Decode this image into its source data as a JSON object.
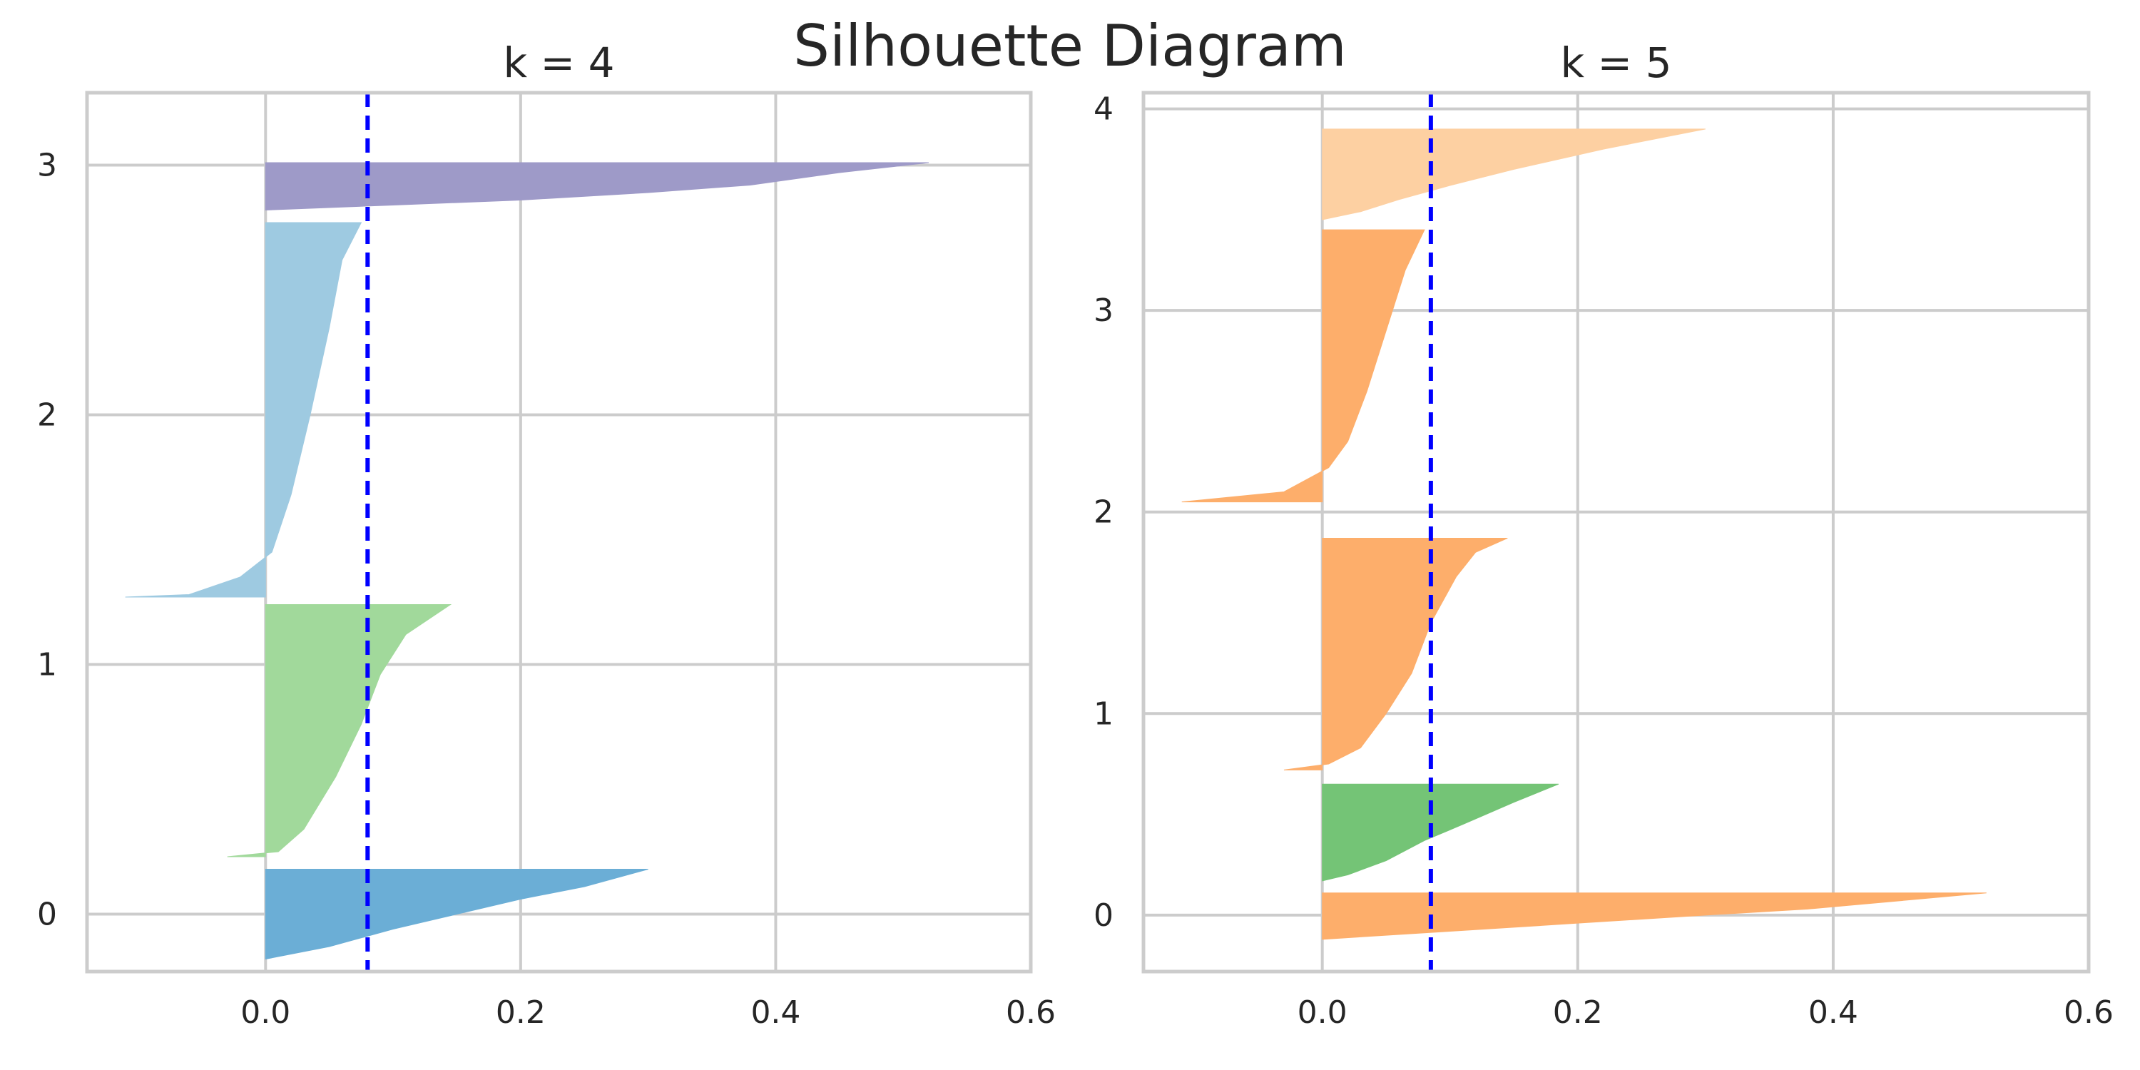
{
  "chart_data": {
    "type": "silhouette",
    "title": "Silhouette Diagram",
    "panels": [
      {
        "title": "k = 4",
        "xlim": [
          -0.14,
          0.6
        ],
        "ylim": [
          -0.23,
          3.29
        ],
        "xticks": [
          0.0,
          0.2,
          0.4,
          0.6
        ],
        "xtick_labels": [
          "0.0",
          "0.2",
          "0.4",
          "0.6"
        ],
        "yticks": [
          0,
          1,
          2,
          3
        ],
        "ytick_labels": [
          "0",
          "1",
          "2",
          "3"
        ],
        "grid": true,
        "mean_silhouette": 0.08,
        "clusters": [
          {
            "label": "0",
            "band": [
              -0.18,
              0.18
            ],
            "color": "#6baed6",
            "profile": [
              [
                0.3,
                0.18
              ],
              [
                0.25,
                0.11
              ],
              [
                0.2,
                0.06
              ],
              [
                0.15,
                0.0
              ],
              [
                0.1,
                -0.06
              ],
              [
                0.05,
                -0.13
              ],
              [
                0.0,
                -0.18
              ]
            ]
          },
          {
            "label": "1",
            "band": [
              0.23,
              1.24
            ],
            "color": "#a1d99b",
            "profile": [
              [
                0.145,
                1.24
              ],
              [
                0.11,
                1.12
              ],
              [
                0.09,
                0.96
              ],
              [
                0.075,
                0.76
              ],
              [
                0.055,
                0.55
              ],
              [
                0.03,
                0.34
              ],
              [
                0.01,
                0.25
              ],
              [
                -0.03,
                0.23
              ]
            ]
          },
          {
            "label": "2",
            "band": [
              1.27,
              2.77
            ],
            "color": "#9ecae1",
            "profile": [
              [
                0.075,
                2.77
              ],
              [
                0.06,
                2.62
              ],
              [
                0.05,
                2.35
              ],
              [
                0.035,
                2.0
              ],
              [
                0.02,
                1.68
              ],
              [
                0.005,
                1.45
              ],
              [
                -0.02,
                1.35
              ],
              [
                -0.06,
                1.28
              ],
              [
                -0.11,
                1.27
              ]
            ]
          },
          {
            "label": "3",
            "band": [
              2.82,
              3.01
            ],
            "color": "#9e9ac8",
            "profile": [
              [
                0.52,
                3.01
              ],
              [
                0.45,
                2.97
              ],
              [
                0.38,
                2.92
              ],
              [
                0.3,
                2.89
              ],
              [
                0.2,
                2.86
              ],
              [
                0.1,
                2.84
              ],
              [
                0.0,
                2.82
              ]
            ]
          }
        ]
      },
      {
        "title": "k = 5",
        "xlim": [
          -0.14,
          0.6
        ],
        "ylim": [
          -0.28,
          4.08
        ],
        "xticks": [
          0.0,
          0.2,
          0.4,
          0.6
        ],
        "xtick_labels": [
          "0.0",
          "0.2",
          "0.4",
          "0.6"
        ],
        "yticks": [
          0,
          1,
          2,
          3,
          4
        ],
        "ytick_labels": [
          "0",
          "1",
          "2",
          "3",
          "4"
        ],
        "grid": true,
        "mean_silhouette": 0.085,
        "clusters": [
          {
            "label": "0",
            "band": [
              -0.12,
              0.11
            ],
            "color": "#fdae6b",
            "profile": [
              [
                0.52,
                0.11
              ],
              [
                0.45,
                0.07
              ],
              [
                0.38,
                0.03
              ],
              [
                0.3,
                0.0
              ],
              [
                0.2,
                -0.04
              ],
              [
                0.1,
                -0.08
              ],
              [
                0.0,
                -0.12
              ]
            ]
          },
          {
            "label": "1",
            "band": [
              0.17,
              0.65
            ],
            "color": "#74c476",
            "profile": [
              [
                0.185,
                0.65
              ],
              [
                0.15,
                0.56
              ],
              [
                0.11,
                0.45
              ],
              [
                0.08,
                0.37
              ],
              [
                0.05,
                0.27
              ],
              [
                0.02,
                0.2
              ],
              [
                0.0,
                0.17
              ]
            ]
          },
          {
            "label": "2",
            "band": [
              0.72,
              1.87
            ],
            "color": "#fdae6b",
            "profile": [
              [
                0.145,
                1.87
              ],
              [
                0.12,
                1.8
              ],
              [
                0.105,
                1.68
              ],
              [
                0.085,
                1.45
              ],
              [
                0.07,
                1.2
              ],
              [
                0.05,
                1.0
              ],
              [
                0.03,
                0.83
              ],
              [
                0.005,
                0.75
              ],
              [
                -0.03,
                0.72
              ]
            ]
          },
          {
            "label": "3",
            "band": [
              2.05,
              3.4
            ],
            "color": "#fdae6b",
            "profile": [
              [
                0.08,
                3.4
              ],
              [
                0.065,
                3.2
              ],
              [
                0.05,
                2.9
              ],
              [
                0.035,
                2.6
              ],
              [
                0.02,
                2.35
              ],
              [
                0.005,
                2.22
              ],
              [
                -0.03,
                2.1
              ],
              [
                -0.11,
                2.05
              ]
            ]
          },
          {
            "label": "4",
            "band": [
              3.45,
              3.9
            ],
            "color": "#fdd0a2",
            "profile": [
              [
                0.3,
                3.9
              ],
              [
                0.22,
                3.8
              ],
              [
                0.15,
                3.7
              ],
              [
                0.1,
                3.62
              ],
              [
                0.06,
                3.55
              ],
              [
                0.03,
                3.49
              ],
              [
                0.0,
                3.45
              ]
            ]
          }
        ]
      }
    ]
  }
}
